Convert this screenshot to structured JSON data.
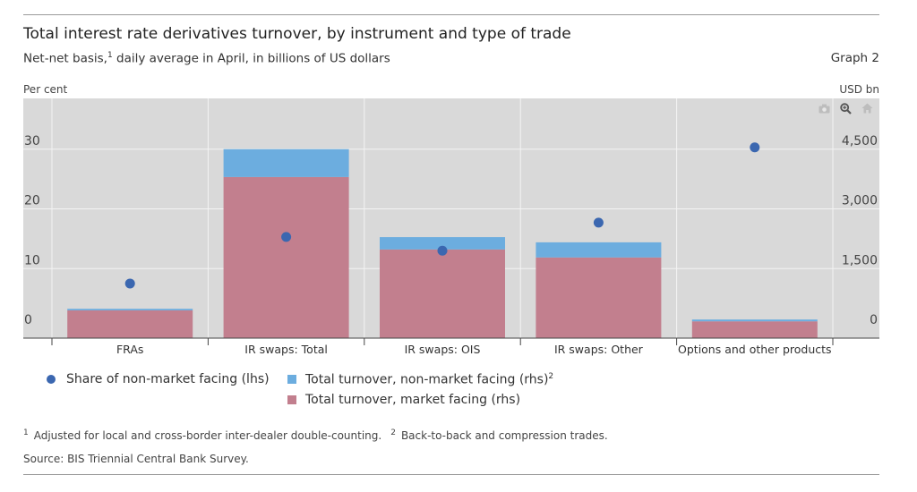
{
  "header": {
    "title": "Total interest rate derivatives turnover, by instrument and type of trade",
    "subtitle_main": "Net-net basis,",
    "subtitle_sup": "1",
    "subtitle_rest": " daily average in April, in billions of US dollars",
    "graph_no": "Graph 2"
  },
  "axes": {
    "left_unit": "Per cent",
    "right_unit": "USD bn"
  },
  "modebar": [
    "camera-icon",
    "zoom-icon",
    "home-icon"
  ],
  "legend": [
    {
      "label": "Share of non-market facing (lhs)",
      "sup": "",
      "marker": "dot",
      "color": "#3b67b0"
    },
    {
      "label": "Total turnover, non-market facing (rhs)",
      "sup": "2",
      "marker": "box",
      "color": "#6caddf"
    },
    {
      "label": "Total turnover, market facing (rhs)",
      "sup": "",
      "marker": "box",
      "color": "#c27f8e"
    }
  ],
  "footnotes": {
    "n1_mark": "1",
    "n1_text": "Adjusted for local and cross-border inter-dealer double-counting.",
    "n2_mark": "2",
    "n2_text": "Back-to-back and compression trades."
  },
  "source": "Source: BIS Triennial Central Bank Survey.",
  "chart_data": {
    "type": "bar",
    "categories": [
      "FRAs",
      "IR swaps: Total",
      "IR swaps: OIS",
      "IR swaps: Other",
      "Options and other products"
    ],
    "series": [
      {
        "name": "Total turnover, market facing (rhs)",
        "kind": "bar",
        "axis": "right",
        "color": "#c27f8e",
        "values": [
          450,
          3800,
          1980,
          1780,
          175
        ]
      },
      {
        "name": "Total turnover, non-market facing (rhs)",
        "kind": "bar-stack",
        "axis": "right",
        "color": "#6caddf",
        "values": [
          40,
          700,
          310,
          380,
          45
        ]
      },
      {
        "name": "Share of non-market facing (lhs)",
        "kind": "dot",
        "axis": "left",
        "color": "#3b67b0",
        "values": [
          7.5,
          15.3,
          13,
          17.7,
          30.3
        ]
      }
    ],
    "y_left": {
      "ylim": [
        0,
        40
      ],
      "ticks": [
        "0",
        "10",
        "20",
        "30"
      ],
      "tick_values": [
        0,
        10,
        20,
        30
      ]
    },
    "y_right": {
      "ylim": [
        0,
        6000
      ],
      "ticks": [
        "0",
        "1,500",
        "3,000",
        "4,500"
      ],
      "tick_values": [
        0,
        1500,
        3000,
        4500
      ]
    },
    "background": "#d9d9d9",
    "grid": true,
    "legend_position": "bottom-left"
  }
}
